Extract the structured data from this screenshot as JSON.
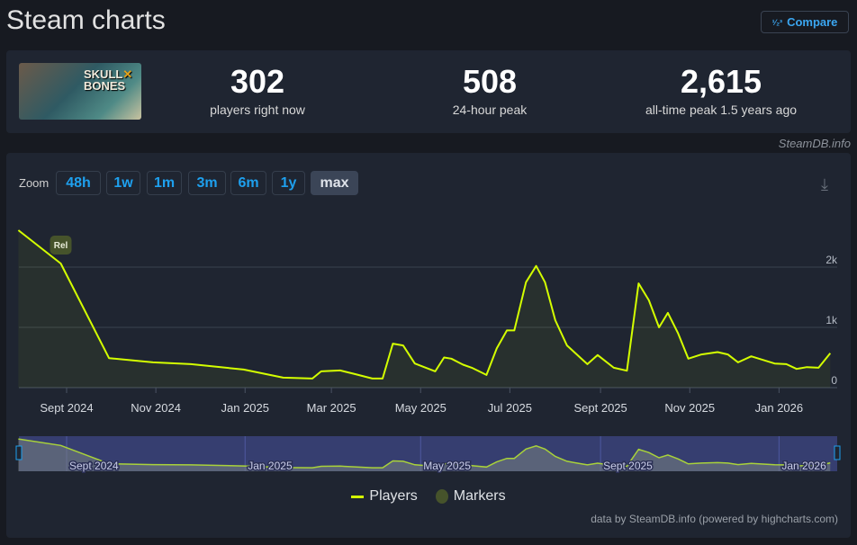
{
  "header": {
    "title": "Steam charts",
    "compare_label": "Compare",
    "compare_icon": "fraction-123-icon"
  },
  "stats": [
    {
      "value": "302",
      "label": "players right now"
    },
    {
      "value": "508",
      "label": "24-hour peak"
    },
    {
      "value": "2,615",
      "label": "all-time peak 1.5 years ago"
    }
  ],
  "game_cover": {
    "logo_text": "SKULL AND BONES"
  },
  "source_label": "SteamDB.info",
  "zoom": {
    "label": "Zoom",
    "options": [
      "48h",
      "1w",
      "1m",
      "3m",
      "6m",
      "1y",
      "max"
    ],
    "selected": "max"
  },
  "colors": {
    "series": "#d4ff00",
    "marker": "#46532b",
    "accent": "#1ea0ee",
    "navigator": "#363e70"
  },
  "chart_data": {
    "type": "area",
    "ylim": [
      0,
      2700
    ],
    "yticks": [
      {
        "v": 0,
        "label": "0"
      },
      {
        "v": 1000,
        "label": "1k"
      },
      {
        "v": 2000,
        "label": "2k"
      }
    ],
    "xticks": [
      {
        "d": "2024-09-01",
        "label": "Sept 2024"
      },
      {
        "d": "2024-11-01",
        "label": "Nov 2024"
      },
      {
        "d": "2025-01-01",
        "label": "Jan 2025"
      },
      {
        "d": "2025-03-01",
        "label": "Mar 2025"
      },
      {
        "d": "2025-05-01",
        "label": "May 2025"
      },
      {
        "d": "2025-07-01",
        "label": "Jul 2025"
      },
      {
        "d": "2025-09-01",
        "label": "Sept 2025"
      },
      {
        "d": "2025-11-01",
        "label": "Nov 2025"
      },
      {
        "d": "2026-01-01",
        "label": "Jan 2026"
      }
    ],
    "navigator_ticks": [
      {
        "d": "2024-09-01",
        "label": "Sept 2024"
      },
      {
        "d": "2025-01-01",
        "label": "Jan 2025"
      },
      {
        "d": "2025-05-01",
        "label": "May 2025"
      },
      {
        "d": "2025-09-01",
        "label": "Sept 2025"
      },
      {
        "d": "2026-01-01",
        "label": "Jan 2026"
      }
    ],
    "grid": true,
    "legend_position": "bottom-center",
    "series": [
      {
        "name": "Players",
        "points": [
          [
            "2024-07-30",
            2612
          ],
          [
            "2024-08-28",
            2060
          ],
          [
            "2024-09-30",
            490
          ],
          [
            "2024-10-30",
            420
          ],
          [
            "2024-11-25",
            390
          ],
          [
            "2024-12-31",
            300
          ],
          [
            "2025-01-27",
            165
          ],
          [
            "2025-02-16",
            150
          ],
          [
            "2025-02-22",
            270
          ],
          [
            "2025-03-07",
            285
          ],
          [
            "2025-03-17",
            225
          ],
          [
            "2025-03-29",
            150
          ],
          [
            "2025-04-05",
            150
          ],
          [
            "2025-04-12",
            730
          ],
          [
            "2025-04-19",
            700
          ],
          [
            "2025-04-27",
            400
          ],
          [
            "2025-05-11",
            270
          ],
          [
            "2025-05-17",
            500
          ],
          [
            "2025-05-22",
            480
          ],
          [
            "2025-05-30",
            380
          ],
          [
            "2025-06-05",
            330
          ],
          [
            "2025-06-15",
            210
          ],
          [
            "2025-06-22",
            650
          ],
          [
            "2025-06-29",
            950
          ],
          [
            "2025-07-04",
            950
          ],
          [
            "2025-07-12",
            1750
          ],
          [
            "2025-07-19",
            2020
          ],
          [
            "2025-07-25",
            1750
          ],
          [
            "2025-08-01",
            1120
          ],
          [
            "2025-08-09",
            700
          ],
          [
            "2025-08-18",
            500
          ],
          [
            "2025-08-23",
            390
          ],
          [
            "2025-08-30",
            540
          ],
          [
            "2025-09-10",
            330
          ],
          [
            "2025-09-19",
            280
          ],
          [
            "2025-09-27",
            1730
          ],
          [
            "2025-10-04",
            1450
          ],
          [
            "2025-10-11",
            1000
          ],
          [
            "2025-10-17",
            1240
          ],
          [
            "2025-10-24",
            900
          ],
          [
            "2025-10-31",
            480
          ],
          [
            "2025-11-09",
            550
          ],
          [
            "2025-11-20",
            590
          ],
          [
            "2025-11-27",
            550
          ],
          [
            "2025-12-04",
            420
          ],
          [
            "2025-12-13",
            520
          ],
          [
            "2025-12-21",
            460
          ],
          [
            "2025-12-29",
            400
          ],
          [
            "2026-01-06",
            390
          ],
          [
            "2026-01-13",
            310
          ],
          [
            "2026-01-20",
            340
          ],
          [
            "2026-01-28",
            330
          ],
          [
            "2026-02-05",
            570
          ]
        ]
      }
    ],
    "markers": [
      {
        "d": "2024-08-28",
        "label": "Rel"
      }
    ],
    "legend": [
      "Players",
      "Markers"
    ],
    "credits": "data by SteamDB.info (powered by highcharts.com)"
  }
}
